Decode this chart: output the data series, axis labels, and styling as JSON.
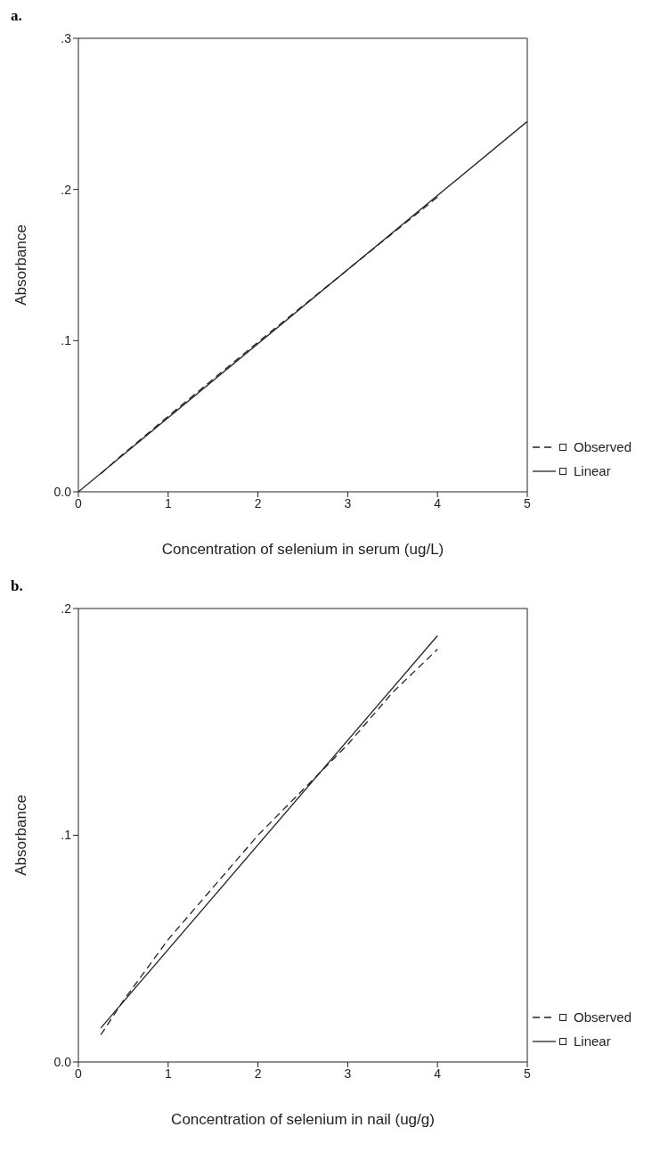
{
  "chart_data": [
    {
      "type": "line",
      "title": "a.",
      "xlabel": "Concentration of selenium in serum (ug/L)",
      "ylabel": "Absorbance",
      "xlim": [
        0,
        5
      ],
      "xticks": [
        0,
        1,
        2,
        3,
        4,
        5
      ],
      "ylim": [
        0,
        0.3
      ],
      "yticks": [
        {
          "value": 0,
          "label": "0.0"
        },
        {
          "value": 0.1,
          "label": ".1"
        },
        {
          "value": 0.2,
          "label": ".2"
        },
        {
          "value": 0.3,
          "label": ".3"
        }
      ],
      "grid": false,
      "legend": "right",
      "marker": "none",
      "series": [
        {
          "name": "Observed",
          "color": "#222222",
          "line_style": "dashed",
          "x": [
            0.25,
            0.5,
            1,
            2,
            4
          ],
          "values": [
            0.012,
            0.025,
            0.05,
            0.099,
            0.195
          ]
        },
        {
          "name": "Linear",
          "color": "#222222",
          "line_style": "solid",
          "x": [
            0,
            5
          ],
          "values": [
            0,
            0.245
          ]
        }
      ]
    },
    {
      "type": "line",
      "title": "b.",
      "xlabel": "Concentration of selenium in nail (ug/g)",
      "ylabel": "Absorbance",
      "xlim": [
        0,
        5
      ],
      "xticks": [
        0,
        1,
        2,
        3,
        4,
        5
      ],
      "ylim": [
        0,
        0.2
      ],
      "yticks": [
        {
          "value": 0,
          "label": "0.0"
        },
        {
          "value": 0.1,
          "label": ".1"
        },
        {
          "value": 0.2,
          "label": ".2"
        }
      ],
      "grid": false,
      "legend": "right",
      "marker": "none",
      "series": [
        {
          "name": "Observed",
          "color": "#222222",
          "line_style": "dashed",
          "x": [
            0.25,
            0.5,
            1,
            2,
            3,
            3.5,
            4
          ],
          "values": [
            0.012,
            0.027,
            0.054,
            0.1,
            0.14,
            0.163,
            0.182
          ]
        },
        {
          "name": "Linear",
          "color": "#222222",
          "line_style": "solid",
          "x": [
            0.25,
            4
          ],
          "values": [
            0.015,
            0.188
          ]
        }
      ]
    }
  ]
}
